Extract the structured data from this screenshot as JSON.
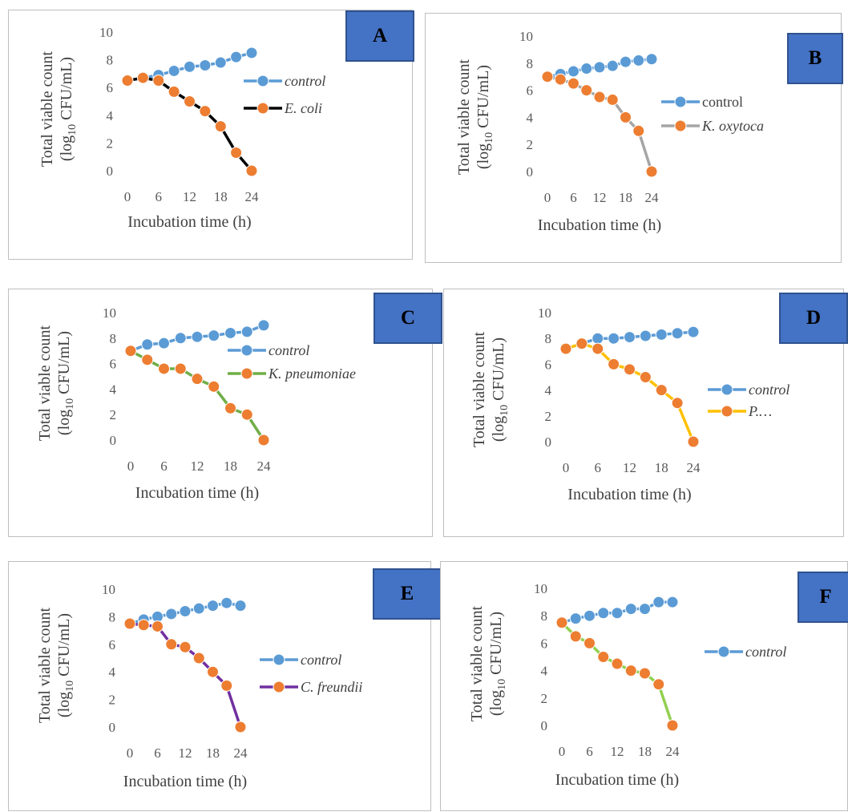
{
  "chart_data": [
    {
      "panel": "A",
      "type": "line",
      "ylabel_line1": "Total viable count",
      "ylabel_line2": "(log10 CFU/mL)",
      "xlabel": "Incubation time (h)",
      "ylim": [
        0,
        10
      ],
      "yticks": [
        "0",
        "2",
        "4",
        "6",
        "8",
        "10"
      ],
      "xticks": [
        "0",
        "6",
        "12",
        "18",
        "24"
      ],
      "legend_placement": "right",
      "series": [
        {
          "name": "control",
          "italic": true,
          "color": "#5b9bd5",
          "markerColor": "#5b9bd5",
          "x": [
            0,
            3,
            6,
            9,
            12,
            15,
            18,
            21,
            24
          ],
          "y": [
            6.5,
            6.7,
            6.9,
            7.2,
            7.5,
            7.6,
            7.8,
            8.2,
            8.5
          ]
        },
        {
          "name": "E. coli",
          "italic": true,
          "color": "#000000",
          "markerColor": "#ed7d31",
          "x": [
            0,
            3,
            6,
            9,
            12,
            15,
            18,
            21,
            24
          ],
          "y": [
            6.5,
            6.7,
            6.5,
            5.7,
            5.0,
            4.3,
            3.2,
            1.3,
            0
          ]
        }
      ]
    },
    {
      "panel": "B",
      "type": "line",
      "ylabel_line1": "Total viable count",
      "ylabel_line2": "(log10 CFU/mL)",
      "xlabel": "Incubation time (h)",
      "ylim": [
        0,
        10
      ],
      "yticks": [
        "0",
        "2",
        "4",
        "6",
        "8",
        "10"
      ],
      "xticks": [
        "0",
        "6",
        "12",
        "18",
        "24"
      ],
      "legend_placement": "right",
      "series": [
        {
          "name": "control",
          "italic": false,
          "color": "#5b9bd5",
          "markerColor": "#5b9bd5",
          "x": [
            0,
            3,
            6,
            9,
            12,
            15,
            18,
            21,
            24
          ],
          "y": [
            7.0,
            7.2,
            7.4,
            7.6,
            7.7,
            7.8,
            8.1,
            8.2,
            8.3
          ]
        },
        {
          "name": "K. oxytoca",
          "italic": true,
          "color": "#a5a5a5",
          "markerColor": "#ed7d31",
          "x": [
            0,
            3,
            6,
            9,
            12,
            15,
            18,
            21,
            24
          ],
          "y": [
            7.0,
            6.8,
            6.5,
            6.0,
            5.5,
            5.3,
            4.0,
            3.0,
            0
          ]
        }
      ]
    },
    {
      "panel": "C",
      "type": "line",
      "ylabel_line1": "Total viable count",
      "ylabel_line2": "(log10 CFU/mL)",
      "xlabel": "Incubation time (h)",
      "ylim": [
        0,
        10
      ],
      "yticks": [
        "0",
        "2",
        "4",
        "6",
        "8",
        "10"
      ],
      "xticks": [
        "0",
        "6",
        "12",
        "18",
        "24"
      ],
      "legend_placement": "right",
      "series": [
        {
          "name": "control",
          "italic": true,
          "color": "#5b9bd5",
          "markerColor": "#5b9bd5",
          "x": [
            0,
            3,
            6,
            9,
            12,
            15,
            18,
            21,
            24
          ],
          "y": [
            7.0,
            7.5,
            7.6,
            8.0,
            8.1,
            8.2,
            8.4,
            8.5,
            9.0
          ]
        },
        {
          "name": "K. pneumoniae",
          "italic": true,
          "color": "#70ad47",
          "markerColor": "#ed7d31",
          "x": [
            0,
            3,
            6,
            9,
            12,
            15,
            18,
            21,
            24
          ],
          "y": [
            7.0,
            6.3,
            5.6,
            5.6,
            4.8,
            4.2,
            2.5,
            2.0,
            0
          ]
        }
      ]
    },
    {
      "panel": "D",
      "type": "line",
      "ylabel_line1": "Total viable count",
      "ylabel_line2": "(log10 CFU/mL)",
      "xlabel": "Incubation time (h)",
      "ylim": [
        0,
        10
      ],
      "yticks": [
        "0",
        "2",
        "4",
        "6",
        "8",
        "10"
      ],
      "xticks": [
        "0",
        "6",
        "12",
        "18",
        "24"
      ],
      "legend_placement": "right",
      "series": [
        {
          "name": "control",
          "italic": true,
          "color": "#5b9bd5",
          "markerColor": "#5b9bd5",
          "x": [
            0,
            3,
            6,
            9,
            12,
            15,
            18,
            21,
            24
          ],
          "y": [
            7.2,
            7.6,
            8.0,
            8.0,
            8.1,
            8.2,
            8.3,
            8.4,
            8.5
          ]
        },
        {
          "name": "P.…",
          "italic": true,
          "color": "#ffc000",
          "markerColor": "#ed7d31",
          "x": [
            0,
            3,
            6,
            9,
            12,
            15,
            18,
            21,
            24
          ],
          "y": [
            7.2,
            7.6,
            7.2,
            6.0,
            5.6,
            5.0,
            4.0,
            3.0,
            0
          ]
        }
      ]
    },
    {
      "panel": "E",
      "type": "line",
      "ylabel_line1": "Total viable count",
      "ylabel_line2": "(log10 CFU/mL)",
      "xlabel": "Incubation time (h)",
      "ylim": [
        0,
        10
      ],
      "yticks": [
        "0",
        "2",
        "4",
        "6",
        "8",
        "10"
      ],
      "xticks": [
        "0",
        "6",
        "12",
        "18",
        "24"
      ],
      "legend_placement": "right",
      "series": [
        {
          "name": "control",
          "italic": true,
          "color": "#5b9bd5",
          "markerColor": "#5b9bd5",
          "x": [
            0,
            3,
            6,
            9,
            12,
            15,
            18,
            21,
            24
          ],
          "y": [
            7.5,
            7.8,
            8.0,
            8.2,
            8.4,
            8.6,
            8.8,
            9.0,
            8.8
          ]
        },
        {
          "name": "C. freundii",
          "italic": true,
          "color": "#7030a0",
          "markerColor": "#ed7d31",
          "x": [
            0,
            3,
            6,
            9,
            12,
            15,
            18,
            21,
            24
          ],
          "y": [
            7.5,
            7.4,
            7.3,
            6.0,
            5.8,
            5.0,
            4.0,
            3.0,
            0
          ]
        }
      ]
    },
    {
      "panel": "F",
      "type": "line",
      "ylabel_line1": "Total viable count",
      "ylabel_line2": "(log10 CFU/mL)",
      "xlabel": "Incubation time (h)",
      "ylim": [
        0,
        10
      ],
      "yticks": [
        "0",
        "2",
        "4",
        "6",
        "8",
        "10"
      ],
      "xticks": [
        "0",
        "6",
        "12",
        "18",
        "24"
      ],
      "legend_placement": "right",
      "series": [
        {
          "name": "control",
          "italic": true,
          "color": "#5b9bd5",
          "markerColor": "#5b9bd5",
          "x": [
            0,
            3,
            6,
            9,
            12,
            15,
            18,
            21,
            24
          ],
          "y": [
            7.5,
            7.8,
            8.0,
            8.2,
            8.2,
            8.5,
            8.5,
            9.0,
            9.0
          ]
        },
        {
          "name": "",
          "italic": false,
          "color": "#92d050",
          "markerColor": "#ed7d31",
          "x": [
            0,
            3,
            6,
            9,
            12,
            15,
            18,
            21,
            24
          ],
          "y": [
            7.5,
            6.5,
            6.0,
            5.0,
            4.5,
            4.0,
            3.8,
            3.0,
            0
          ]
        }
      ]
    }
  ]
}
